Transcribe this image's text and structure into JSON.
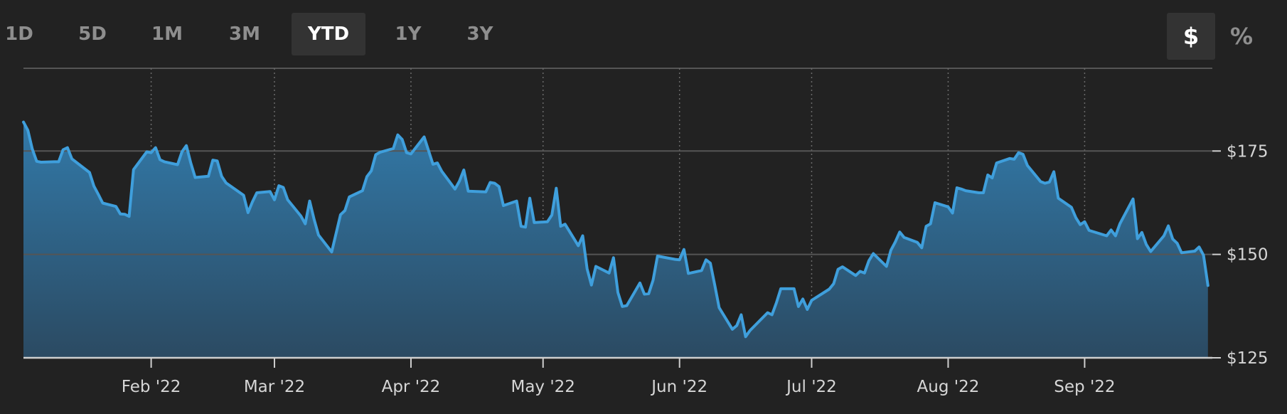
{
  "range_tabs": [
    {
      "label": "1D",
      "active": false
    },
    {
      "label": "5D",
      "active": false
    },
    {
      "label": "1M",
      "active": false
    },
    {
      "label": "3M",
      "active": false
    },
    {
      "label": "YTD",
      "active": true
    },
    {
      "label": "1Y",
      "active": false
    },
    {
      "label": "3Y",
      "active": false
    }
  ],
  "unit_toggle": [
    {
      "label": "$",
      "active": true
    },
    {
      "label": "%",
      "active": false
    }
  ],
  "colors": {
    "background": "#222222",
    "line": "#3f9fdc",
    "fill_top": "#3279a8",
    "fill_bottom": "#2b4a62",
    "grid": "#555555"
  },
  "chart_data": {
    "type": "area",
    "x_range": [
      "2022-01-03",
      "2022-09-30"
    ],
    "ylim": [
      125,
      195
    ],
    "y_ticks": [
      {
        "value": 125,
        "label": "$125"
      },
      {
        "value": 150,
        "label": "$150"
      },
      {
        "value": 175,
        "label": "$175"
      }
    ],
    "x_ticks": [
      {
        "date": "2022-02-01",
        "label": "Feb '22"
      },
      {
        "date": "2022-03-01",
        "label": "Mar '22"
      },
      {
        "date": "2022-04-01",
        "label": "Apr '22"
      },
      {
        "date": "2022-05-01",
        "label": "May '22"
      },
      {
        "date": "2022-06-01",
        "label": "Jun '22"
      },
      {
        "date": "2022-07-01",
        "label": "Jul '22"
      },
      {
        "date": "2022-08-01",
        "label": "Aug '22"
      },
      {
        "date": "2022-09-01",
        "label": "Sep '22"
      }
    ],
    "grid": true,
    "series": [
      {
        "points": [
          [
            "2022-01-03",
            182.0
          ],
          [
            "2022-01-04",
            180.0
          ],
          [
            "2022-01-05",
            175.5
          ],
          [
            "2022-01-06",
            172.5
          ],
          [
            "2022-01-07",
            172.3
          ],
          [
            "2022-01-10",
            172.4
          ],
          [
            "2022-01-11",
            172.4
          ],
          [
            "2022-01-12",
            175.3
          ],
          [
            "2022-01-13",
            175.8
          ],
          [
            "2022-01-14",
            173.1
          ],
          [
            "2022-01-18",
            169.8
          ],
          [
            "2022-01-19",
            166.5
          ],
          [
            "2022-01-20",
            164.5
          ],
          [
            "2022-01-21",
            162.4
          ],
          [
            "2022-01-24",
            161.6
          ],
          [
            "2022-01-25",
            159.8
          ],
          [
            "2022-01-26",
            159.7
          ],
          [
            "2022-01-27",
            159.2
          ],
          [
            "2022-01-28",
            170.5
          ],
          [
            "2022-01-31",
            174.8
          ],
          [
            "2022-02-01",
            174.6
          ],
          [
            "2022-02-02",
            175.8
          ],
          [
            "2022-02-03",
            172.9
          ],
          [
            "2022-02-04",
            172.4
          ],
          [
            "2022-02-07",
            171.7
          ],
          [
            "2022-02-08",
            174.8
          ],
          [
            "2022-02-09",
            176.3
          ],
          [
            "2022-02-10",
            172.1
          ],
          [
            "2022-02-11",
            168.6
          ],
          [
            "2022-02-14",
            168.9
          ],
          [
            "2022-02-15",
            172.8
          ],
          [
            "2022-02-16",
            172.6
          ],
          [
            "2022-02-17",
            168.9
          ],
          [
            "2022-02-18",
            167.3
          ],
          [
            "2022-02-22",
            164.3
          ],
          [
            "2022-02-23",
            160.1
          ],
          [
            "2022-02-24",
            162.7
          ],
          [
            "2022-02-25",
            164.9
          ],
          [
            "2022-02-28",
            165.2
          ],
          [
            "2022-03-01",
            163.2
          ],
          [
            "2022-03-02",
            166.6
          ],
          [
            "2022-03-03",
            166.2
          ],
          [
            "2022-03-04",
            163.2
          ],
          [
            "2022-03-07",
            159.3
          ],
          [
            "2022-03-08",
            157.4
          ],
          [
            "2022-03-09",
            162.9
          ],
          [
            "2022-03-10",
            158.5
          ],
          [
            "2022-03-11",
            154.7
          ],
          [
            "2022-03-14",
            150.6
          ],
          [
            "2022-03-15",
            155.1
          ],
          [
            "2022-03-16",
            159.6
          ],
          [
            "2022-03-17",
            160.6
          ],
          [
            "2022-03-18",
            163.9
          ],
          [
            "2022-03-21",
            165.4
          ],
          [
            "2022-03-22",
            168.8
          ],
          [
            "2022-03-23",
            170.2
          ],
          [
            "2022-03-24",
            174.1
          ],
          [
            "2022-03-25",
            174.7
          ],
          [
            "2022-03-28",
            175.6
          ],
          [
            "2022-03-29",
            178.9
          ],
          [
            "2022-03-30",
            177.8
          ],
          [
            "2022-03-31",
            174.6
          ],
          [
            "2022-04-01",
            174.3
          ],
          [
            "2022-04-04",
            178.4
          ],
          [
            "2022-04-05",
            175.1
          ],
          [
            "2022-04-06",
            171.8
          ],
          [
            "2022-04-07",
            172.1
          ],
          [
            "2022-04-08",
            170.1
          ],
          [
            "2022-04-11",
            165.8
          ],
          [
            "2022-04-12",
            167.7
          ],
          [
            "2022-04-13",
            170.4
          ],
          [
            "2022-04-14",
            165.3
          ],
          [
            "2022-04-18",
            165.1
          ],
          [
            "2022-04-19",
            167.4
          ],
          [
            "2022-04-20",
            167.2
          ],
          [
            "2022-04-21",
            166.4
          ],
          [
            "2022-04-22",
            161.8
          ],
          [
            "2022-04-25",
            162.9
          ],
          [
            "2022-04-26",
            156.8
          ],
          [
            "2022-04-27",
            156.6
          ],
          [
            "2022-04-28",
            163.6
          ],
          [
            "2022-04-29",
            157.7
          ],
          [
            "2022-05-02",
            157.9
          ],
          [
            "2022-05-03",
            159.5
          ],
          [
            "2022-05-04",
            166.0
          ],
          [
            "2022-05-05",
            156.8
          ],
          [
            "2022-05-06",
            157.3
          ],
          [
            "2022-05-09",
            152.1
          ],
          [
            "2022-05-10",
            154.5
          ],
          [
            "2022-05-11",
            146.5
          ],
          [
            "2022-05-12",
            142.6
          ],
          [
            "2022-05-13",
            147.1
          ],
          [
            "2022-05-16",
            145.5
          ],
          [
            "2022-05-17",
            149.2
          ],
          [
            "2022-05-18",
            140.8
          ],
          [
            "2022-05-19",
            137.4
          ],
          [
            "2022-05-20",
            137.6
          ],
          [
            "2022-05-23",
            143.1
          ],
          [
            "2022-05-24",
            140.4
          ],
          [
            "2022-05-25",
            140.5
          ],
          [
            "2022-05-26",
            143.8
          ],
          [
            "2022-05-27",
            149.6
          ],
          [
            "2022-05-31",
            148.8
          ],
          [
            "2022-06-01",
            148.7
          ],
          [
            "2022-06-02",
            151.2
          ],
          [
            "2022-06-03",
            145.4
          ],
          [
            "2022-06-06",
            146.1
          ],
          [
            "2022-06-07",
            148.7
          ],
          [
            "2022-06-08",
            147.9
          ],
          [
            "2022-06-09",
            142.6
          ],
          [
            "2022-06-10",
            137.1
          ],
          [
            "2022-06-13",
            131.9
          ],
          [
            "2022-06-14",
            132.8
          ],
          [
            "2022-06-15",
            135.4
          ],
          [
            "2022-06-16",
            130.1
          ],
          [
            "2022-06-17",
            131.6
          ],
          [
            "2022-06-21",
            135.9
          ],
          [
            "2022-06-22",
            135.4
          ],
          [
            "2022-06-23",
            138.3
          ],
          [
            "2022-06-24",
            141.7
          ],
          [
            "2022-06-27",
            141.7
          ],
          [
            "2022-06-28",
            137.4
          ],
          [
            "2022-06-29",
            139.2
          ],
          [
            "2022-06-30",
            136.7
          ],
          [
            "2022-07-01",
            138.9
          ],
          [
            "2022-07-05",
            141.6
          ],
          [
            "2022-07-06",
            142.9
          ],
          [
            "2022-07-07",
            146.4
          ],
          [
            "2022-07-08",
            147.0
          ],
          [
            "2022-07-11",
            144.9
          ],
          [
            "2022-07-12",
            145.9
          ],
          [
            "2022-07-13",
            145.5
          ],
          [
            "2022-07-14",
            148.5
          ],
          [
            "2022-07-15",
            150.2
          ],
          [
            "2022-07-18",
            147.1
          ],
          [
            "2022-07-19",
            151.0
          ],
          [
            "2022-07-20",
            153.0
          ],
          [
            "2022-07-21",
            155.4
          ],
          [
            "2022-07-22",
            154.1
          ],
          [
            "2022-07-25",
            152.9
          ],
          [
            "2022-07-26",
            151.6
          ],
          [
            "2022-07-27",
            156.8
          ],
          [
            "2022-07-28",
            157.4
          ],
          [
            "2022-07-29",
            162.5
          ],
          [
            "2022-08-01",
            161.5
          ],
          [
            "2022-08-02",
            160.0
          ],
          [
            "2022-08-03",
            166.1
          ],
          [
            "2022-08-04",
            165.8
          ],
          [
            "2022-08-05",
            165.4
          ],
          [
            "2022-08-08",
            164.9
          ],
          [
            "2022-08-09",
            164.9
          ],
          [
            "2022-08-10",
            169.2
          ],
          [
            "2022-08-11",
            168.5
          ],
          [
            "2022-08-12",
            172.1
          ],
          [
            "2022-08-15",
            173.2
          ],
          [
            "2022-08-16",
            173.0
          ],
          [
            "2022-08-17",
            174.6
          ],
          [
            "2022-08-18",
            174.2
          ],
          [
            "2022-08-19",
            171.5
          ],
          [
            "2022-08-22",
            167.6
          ],
          [
            "2022-08-23",
            167.2
          ],
          [
            "2022-08-24",
            167.5
          ],
          [
            "2022-08-25",
            170.0
          ],
          [
            "2022-08-26",
            163.6
          ],
          [
            "2022-08-29",
            161.4
          ],
          [
            "2022-08-30",
            158.9
          ],
          [
            "2022-08-31",
            157.2
          ],
          [
            "2022-09-01",
            157.9
          ],
          [
            "2022-09-02",
            155.8
          ],
          [
            "2022-09-06",
            154.5
          ],
          [
            "2022-09-07",
            155.9
          ],
          [
            "2022-09-08",
            154.5
          ],
          [
            "2022-09-09",
            157.4
          ],
          [
            "2022-09-12",
            163.4
          ],
          [
            "2022-09-13",
            153.8
          ],
          [
            "2022-09-14",
            155.3
          ],
          [
            "2022-09-15",
            152.4
          ],
          [
            "2022-09-16",
            150.7
          ],
          [
            "2022-09-19",
            154.5
          ],
          [
            "2022-09-20",
            156.9
          ],
          [
            "2022-09-21",
            153.7
          ],
          [
            "2022-09-22",
            152.7
          ],
          [
            "2022-09-23",
            150.4
          ],
          [
            "2022-09-26",
            150.8
          ],
          [
            "2022-09-27",
            151.8
          ],
          [
            "2022-09-28",
            149.8
          ],
          [
            "2022-09-29",
            142.5
          ]
        ]
      }
    ]
  }
}
